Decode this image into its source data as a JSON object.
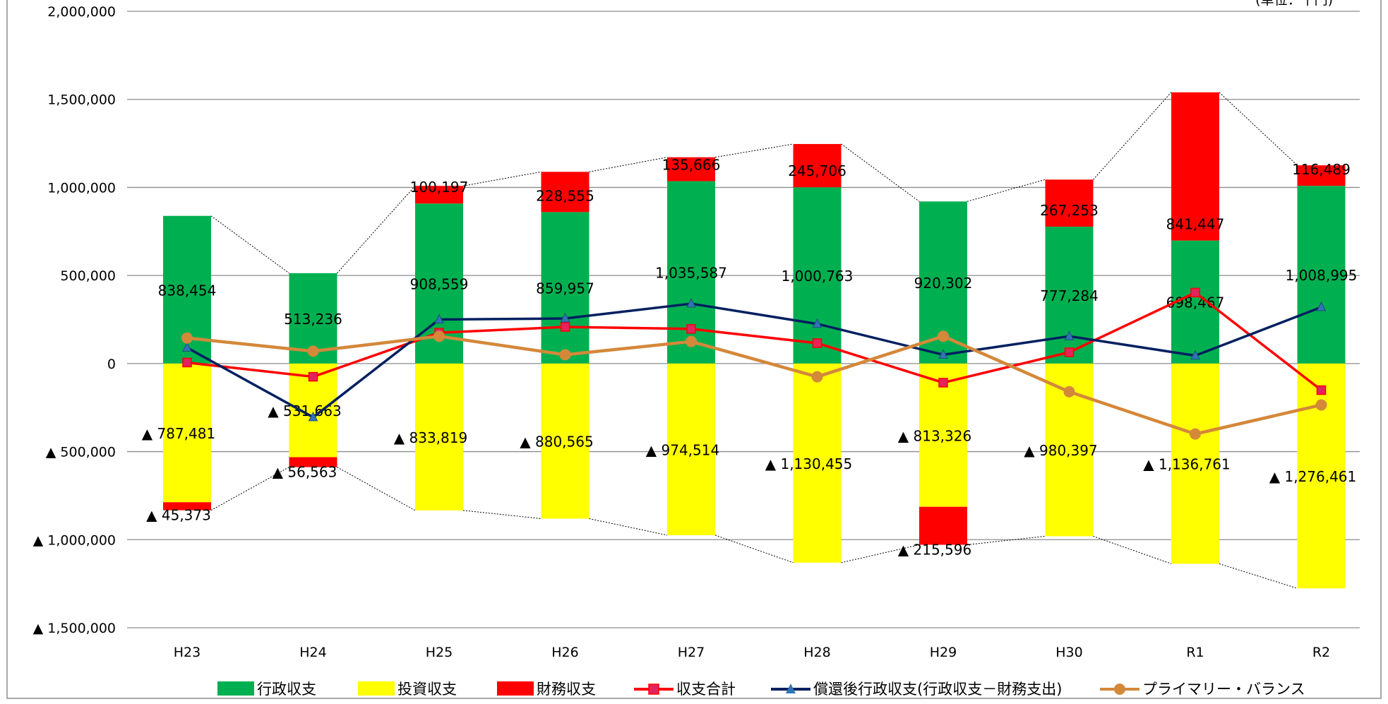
{
  "chart_data": {
    "type": "bar",
    "title": "",
    "xlabel": "",
    "ylabel": "",
    "corner_text": "(単位：千円)",
    "ylim": [
      -1500000,
      2000000
    ],
    "y_ticks": [
      2000000,
      1500000,
      1000000,
      500000,
      0,
      -500000,
      -1000000,
      -1500000
    ],
    "y_tick_labels": [
      "2,000,000",
      "1,500,000",
      "1,000,000",
      "500,000",
      "0",
      "▲ 500,000",
      "▲ 1,000,000",
      "▲ 1,500,000"
    ],
    "grid": true,
    "legend_position": "bottom",
    "categories": [
      "H23",
      "H24",
      "H25",
      "H26",
      "H27",
      "H28",
      "H29",
      "H30",
      "R1",
      "R2"
    ],
    "bar_series": [
      {
        "name": "行政収支",
        "color": "#00B050",
        "values": [
          838454,
          513236,
          908559,
          859957,
          1035587,
          1000763,
          920302,
          777284,
          698467,
          1008995
        ],
        "labels": [
          "838,454",
          "513,236",
          "908,559",
          "859,957",
          "1,035,587",
          "1,000,763",
          "920,302",
          "777,284",
          "698,467",
          "1,008,995"
        ]
      },
      {
        "name": "投資収支",
        "color": "#FFFF00",
        "values": [
          -787481,
          -531663,
          -833819,
          -880565,
          -974514,
          -1130455,
          -813326,
          -980397,
          -1136761,
          -1276461
        ],
        "labels": [
          "▲ 787,481",
          "▲ 531,663",
          "▲ 833,819",
          "▲ 880,565",
          "▲ 974,514",
          "▲ 1,130,455",
          "▲ 813,326",
          "▲ 980,397",
          "▲ 1,136,761",
          "▲ 1,276,461"
        ]
      },
      {
        "name": "財務収支",
        "color": "#FF0000",
        "values": [
          -45373,
          -56563,
          100197,
          228555,
          135666,
          245706,
          -215596,
          267253,
          841447,
          116489
        ],
        "labels": [
          "▲ 45,373",
          "▲ 56,563",
          "100,197",
          "228,555",
          "135,666",
          "245,706",
          "▲ 215,596",
          "267,253",
          "841,447",
          "116,489"
        ]
      }
    ],
    "line_series": [
      {
        "name": "収支合計",
        "color": "#FF0000",
        "marker": "square",
        "marker_fill": "#E0245E",
        "values": [
          5600,
          -75000,
          175000,
          208000,
          196700,
          115800,
          -108600,
          64100,
          402800,
          -151000
        ]
      },
      {
        "name": "償還後行政収支(行政収支－財務支出)",
        "color": "#002060",
        "marker": "triangle",
        "marker_fill": "#2E75B6",
        "values": [
          90000,
          -305000,
          250000,
          256000,
          340000,
          225000,
          50000,
          155000,
          45000,
          320000
        ]
      },
      {
        "name": "プライマリー・バランス",
        "color": "#D4883A",
        "marker": "circle",
        "marker_fill": "#D4883A",
        "values": [
          145000,
          70000,
          155000,
          50000,
          125000,
          -75000,
          155000,
          -160000,
          -400000,
          -235000
        ]
      }
    ]
  }
}
